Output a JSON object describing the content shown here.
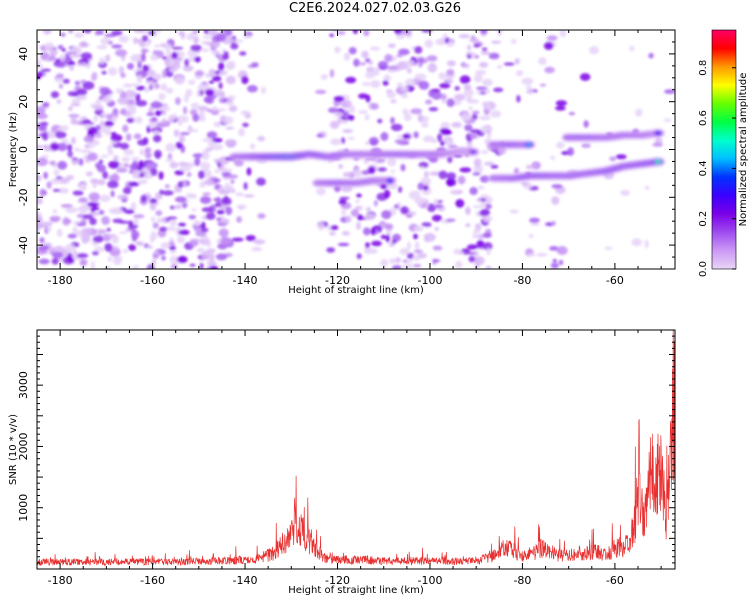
{
  "title": "C2E6.2024.027.02.03.G26",
  "chart_data": [
    {
      "type": "heatmap",
      "xlabel": "Height of straight line (km)",
      "ylabel": "Frequency (Hz)",
      "xlim": [
        -185,
        -47
      ],
      "ylim": [
        -50,
        50
      ],
      "xticks": [
        -180,
        -160,
        -140,
        -120,
        -100,
        -80,
        -60
      ],
      "yticks": [
        -40,
        -20,
        0,
        20,
        40
      ],
      "colorbar": {
        "label": "Normalized spectral amplitude",
        "range": [
          0.0,
          0.95
        ],
        "ticks": [
          "0.0",
          "0.2",
          "0.4",
          "0.6",
          "0.8"
        ],
        "colormap": [
          "#e8d5f7",
          "#cc99f5",
          "#9f4cf0",
          "#7a00e6",
          "#3b00ff",
          "#0033ff",
          "#00bfff",
          "#00ffcc",
          "#00ff44",
          "#66ff00",
          "#ffff00",
          "#ff9900",
          "#ff0000",
          "#ff0066"
        ]
      },
      "traces": [
        {
          "x": [
            -142,
            -138,
            -134,
            -130,
            -126,
            -122,
            -118,
            -114,
            -110,
            -106,
            -102,
            -98,
            -94,
            -90
          ],
          "y": [
            -3,
            -3,
            -3,
            -3,
            -2,
            -3,
            -2,
            -2,
            -2,
            -2,
            -2,
            -2,
            -1,
            -1
          ],
          "amplitude": [
            0.45,
            0.55,
            0.75,
            0.9,
            0.6,
            0.55,
            0.45,
            0.4,
            0.45,
            0.5,
            0.45,
            0.4,
            0.3,
            0.25
          ]
        },
        {
          "x": [
            -124,
            -120,
            -116,
            -112,
            -108
          ],
          "y": [
            -14,
            -14,
            -14,
            -13,
            -13
          ],
          "amplitude": [
            0.4,
            0.5,
            0.45,
            0.45,
            0.35
          ]
        },
        {
          "x": [
            -86,
            -82,
            -78,
            -74,
            -70,
            -66,
            -62,
            -58,
            -54,
            -50
          ],
          "y": [
            -12,
            -12,
            -11,
            -11,
            -11,
            -10,
            -9,
            -7,
            -6,
            -5
          ],
          "amplitude": [
            0.45,
            0.5,
            0.6,
            0.55,
            0.5,
            0.5,
            0.55,
            0.55,
            0.6,
            0.65
          ]
        },
        {
          "x": [
            -86,
            -82,
            -78
          ],
          "y": [
            2,
            2,
            2
          ],
          "amplitude": [
            0.45,
            0.55,
            0.45
          ]
        },
        {
          "x": [
            -70,
            -66,
            -62,
            -58,
            -54,
            -50
          ],
          "y": [
            5,
            5,
            5,
            6,
            6,
            7
          ],
          "amplitude": [
            0.5,
            0.5,
            0.45,
            0.45,
            0.4,
            0.35
          ]
        }
      ]
    },
    {
      "type": "line",
      "xlabel": "Height of straight line (km)",
      "ylabel": "SNR (10 * v/v)",
      "xlim": [
        -185,
        -47
      ],
      "ylim": [
        0,
        3900
      ],
      "xticks": [
        -180,
        -160,
        -140,
        -120,
        -100,
        -80,
        -60
      ],
      "yticks": [
        1000,
        2000,
        3000
      ],
      "color": "#e83030",
      "series": [
        {
          "x": [
            -185,
            -175,
            -165,
            -155,
            -145,
            -138,
            -134,
            -131,
            -129,
            -127,
            -125,
            -123,
            -121,
            -119,
            -115,
            -110,
            -100,
            -95,
            -90,
            -87,
            -84,
            -82,
            -80,
            -78,
            -76,
            -74,
            -72,
            -70,
            -68,
            -66,
            -64,
            -62,
            -60,
            -58,
            -56,
            -55,
            -54,
            -53,
            -52,
            -51,
            -50,
            -49,
            -48,
            -47
          ],
          "y": [
            150,
            150,
            160,
            150,
            180,
            200,
            330,
            650,
            1000,
            700,
            450,
            250,
            200,
            200,
            200,
            180,
            180,
            170,
            170,
            250,
            450,
            400,
            320,
            330,
            450,
            380,
            300,
            280,
            340,
            350,
            400,
            300,
            450,
            500,
            850,
            1550,
            1250,
            1300,
            2400,
            1900,
            2200,
            1000,
            2300,
            3850
          ]
        }
      ]
    }
  ]
}
